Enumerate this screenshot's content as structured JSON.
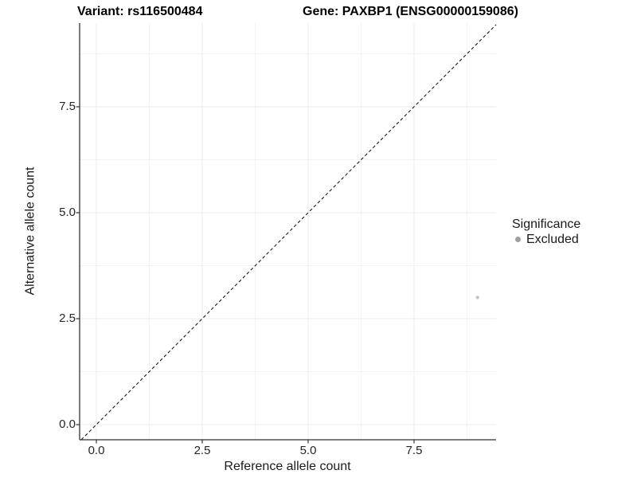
{
  "chart_data": {
    "type": "scatter",
    "titles": {
      "left": "Variant: rs116500484",
      "right": "Gene: PAXBP1 (ENSG00000159086)"
    },
    "xlabel": "Reference allele count",
    "ylabel": "Alternative allele count",
    "x_ticks": {
      "values": [
        0,
        2.5,
        5,
        7.5
      ],
      "labels": [
        "0.0",
        "2.5",
        "5.0",
        "7.5"
      ]
    },
    "y_ticks": {
      "values": [
        0,
        2.5,
        5,
        7.5
      ],
      "labels": [
        "0.0",
        "2.5",
        "5.0",
        "7.5"
      ]
    },
    "minor_tick_values": [
      1.25,
      3.75,
      6.25,
      8.75
    ],
    "xlim": [
      -0.4,
      9.44
    ],
    "ylim": [
      -0.36,
      9.47
    ],
    "grid": {
      "on": true,
      "major_color": "#ebebeb",
      "minor_color": "#f3f3f3"
    },
    "axis_color": "#333333",
    "identity_line": {
      "style": "dashed",
      "color": "#1a1a1a"
    },
    "series": [
      {
        "name": "Excluded",
        "point_color": "#c5c5c5",
        "points": [
          {
            "x": 9,
            "y": 3
          }
        ]
      }
    ],
    "legend": {
      "title": "Significance",
      "position": "right",
      "entries": [
        {
          "label": "Excluded",
          "marker": "circle",
          "color": "#a0a0a0"
        }
      ]
    }
  }
}
